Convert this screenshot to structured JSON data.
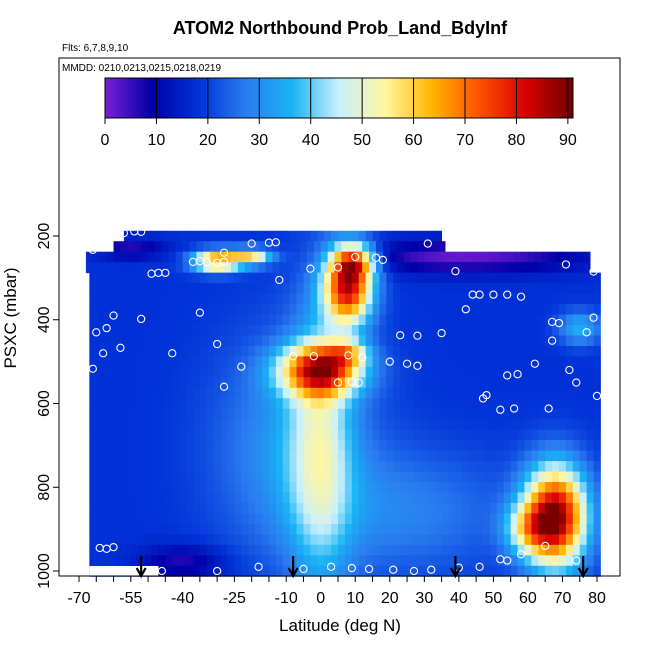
{
  "chart_data": {
    "type": "heatmap",
    "title": "ATOM2 Northbound Prob_Land_BdyInf",
    "flights_note": "Flts: 6,7,8,9,10",
    "dates_note": "MMDD: 0210,0213,0215,0218,0219",
    "xlabel": "Latitude (deg N)",
    "ylabel": "PSXC (mbar)",
    "xlim": [
      -70,
      82
    ],
    "ylim": [
      1000,
      100
    ],
    "x_ticks": [
      -70,
      -55,
      -40,
      -25,
      -10,
      0,
      10,
      20,
      30,
      40,
      50,
      60,
      70,
      80
    ],
    "y_ticks": [
      200,
      400,
      600,
      800,
      1000
    ],
    "colorbar": {
      "range": [
        0,
        91
      ],
      "ticks": [
        0,
        10,
        20,
        30,
        40,
        50,
        60,
        70,
        80,
        90
      ],
      "colors": [
        "#7a1fd6",
        "#0000a8",
        "#0032d8",
        "#2a7bf0",
        "#19b4f5",
        "#c9f0ff",
        "#fff6a0",
        "#ffb400",
        "#ff5000",
        "#d80000",
        "#6e0000"
      ]
    },
    "pressure_rows": [
      200,
      225,
      250,
      275,
      300,
      325,
      350,
      375,
      400,
      425,
      450,
      475,
      500,
      525,
      550,
      575,
      600,
      625,
      650,
      675,
      700,
      725,
      750,
      775,
      800,
      825,
      850,
      875,
      900,
      925,
      950,
      975,
      1000
    ],
    "row_lat_extent": {
      "200": [
        -57,
        35
      ],
      "225": [
        -60,
        35
      ],
      "250": [
        -68,
        78
      ],
      "275": [
        -68,
        78
      ],
      "default": [
        -67,
        81
      ]
    },
    "field_model": "smoothed probability (%) vs latitude and pressure",
    "observation_points": [
      {
        "lat": -57,
        "p": 193
      },
      {
        "lat": -54,
        "p": 189
      },
      {
        "lat": -52,
        "p": 190
      },
      {
        "lat": -64,
        "p": 218
      },
      {
        "lat": -66,
        "p": 233
      },
      {
        "lat": -28,
        "p": 240
      },
      {
        "lat": -20,
        "p": 218
      },
      {
        "lat": -15,
        "p": 216
      },
      {
        "lat": -13,
        "p": 215
      },
      {
        "lat": 31,
        "p": 218
      },
      {
        "lat": 38,
        "p": 213
      },
      {
        "lat": -37,
        "p": 262
      },
      {
        "lat": -35,
        "p": 260
      },
      {
        "lat": -33,
        "p": 262
      },
      {
        "lat": -30,
        "p": 264
      },
      {
        "lat": -28,
        "p": 262
      },
      {
        "lat": -45,
        "p": 288
      },
      {
        "lat": -47,
        "p": 288
      },
      {
        "lat": -49,
        "p": 290
      },
      {
        "lat": -12,
        "p": 305
      },
      {
        "lat": -3,
        "p": 278
      },
      {
        "lat": 5,
        "p": 275
      },
      {
        "lat": 10,
        "p": 250
      },
      {
        "lat": 16,
        "p": 252
      },
      {
        "lat": 18,
        "p": 257
      },
      {
        "lat": 39,
        "p": 284
      },
      {
        "lat": 71,
        "p": 268
      },
      {
        "lat": 79,
        "p": 285
      },
      {
        "lat": -35,
        "p": 383
      },
      {
        "lat": -52,
        "p": 398
      },
      {
        "lat": -60,
        "p": 390
      },
      {
        "lat": -62,
        "p": 420
      },
      {
        "lat": -65,
        "p": 430
      },
      {
        "lat": -63,
        "p": 480
      },
      {
        "lat": -66,
        "p": 517
      },
      {
        "lat": -58,
        "p": 467
      },
      {
        "lat": -43,
        "p": 480
      },
      {
        "lat": -30,
        "p": 458
      },
      {
        "lat": -23,
        "p": 512
      },
      {
        "lat": -28,
        "p": 560
      },
      {
        "lat": -8,
        "p": 487
      },
      {
        "lat": -2,
        "p": 487
      },
      {
        "lat": 8,
        "p": 485
      },
      {
        "lat": 12,
        "p": 490
      },
      {
        "lat": 5,
        "p": 550
      },
      {
        "lat": 9,
        "p": 548
      },
      {
        "lat": 11,
        "p": 550
      },
      {
        "lat": 20,
        "p": 500
      },
      {
        "lat": 25,
        "p": 505
      },
      {
        "lat": 28,
        "p": 510
      },
      {
        "lat": 23,
        "p": 437
      },
      {
        "lat": 28,
        "p": 438
      },
      {
        "lat": 35,
        "p": 432
      },
      {
        "lat": 44,
        "p": 340
      },
      {
        "lat": 46,
        "p": 340
      },
      {
        "lat": 42,
        "p": 375
      },
      {
        "lat": 50,
        "p": 340
      },
      {
        "lat": 54,
        "p": 340
      },
      {
        "lat": 58,
        "p": 345
      },
      {
        "lat": 67,
        "p": 405
      },
      {
        "lat": 69,
        "p": 408
      },
      {
        "lat": 67,
        "p": 450
      },
      {
        "lat": 79,
        "p": 395
      },
      {
        "lat": 77,
        "p": 430
      },
      {
        "lat": 74,
        "p": 550
      },
      {
        "lat": 72,
        "p": 520
      },
      {
        "lat": 57,
        "p": 530
      },
      {
        "lat": 54,
        "p": 533
      },
      {
        "lat": 62,
        "p": 505
      },
      {
        "lat": 48,
        "p": 580
      },
      {
        "lat": 47,
        "p": 588
      },
      {
        "lat": 52,
        "p": 615
      },
      {
        "lat": 56,
        "p": 612
      },
      {
        "lat": 66,
        "p": 612
      },
      {
        "lat": 80,
        "p": 582
      },
      {
        "lat": 65,
        "p": 940
      },
      {
        "lat": 58,
        "p": 960
      },
      {
        "lat": 74,
        "p": 975
      },
      {
        "lat": 54,
        "p": 975
      },
      {
        "lat": -64,
        "p": 945
      },
      {
        "lat": -62,
        "p": 947
      },
      {
        "lat": -60,
        "p": 943
      },
      {
        "lat": -46,
        "p": 1000
      },
      {
        "lat": -30,
        "p": 1000
      },
      {
        "lat": -18,
        "p": 990
      },
      {
        "lat": -5,
        "p": 995
      },
      {
        "lat": 3,
        "p": 990
      },
      {
        "lat": 9,
        "p": 993
      },
      {
        "lat": 14,
        "p": 995
      },
      {
        "lat": 21,
        "p": 997
      },
      {
        "lat": 27,
        "p": 1000
      },
      {
        "lat": 32,
        "p": 997
      },
      {
        "lat": 40,
        "p": 992
      },
      {
        "lat": 46,
        "p": 990
      },
      {
        "lat": 52,
        "p": 972
      }
    ],
    "arrows_at_lat": [
      -52,
      -8,
      39,
      76
    ]
  }
}
